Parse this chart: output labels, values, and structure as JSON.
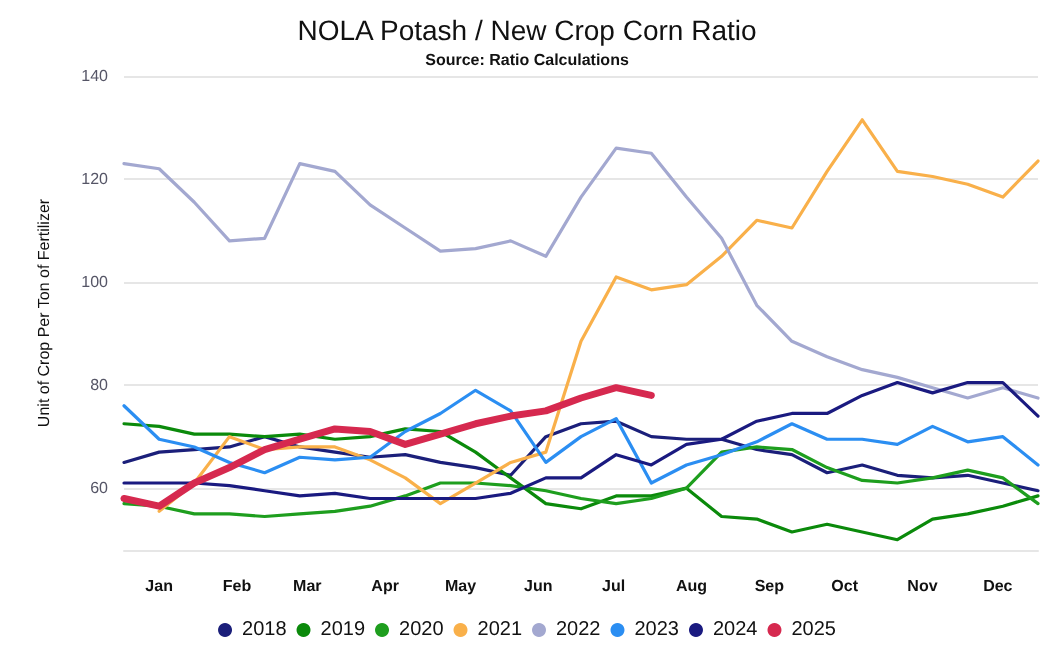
{
  "chart_data": {
    "type": "line",
    "title": "NOLA Potash / New Crop Corn Ratio",
    "subtitle": "Source: Ratio Calculations",
    "ylabel": "Unit of Crop Per Ton of Fertilizer",
    "x": [
      "--01-01",
      "--01-15",
      "--01-29",
      "--02-12",
      "--02-26",
      "--03-12",
      "--03-26",
      "--04-09",
      "--04-23",
      "--05-07",
      "--05-21",
      "--06-04",
      "--06-18",
      "--07-02",
      "--07-16",
      "--07-30",
      "--08-13",
      "--08-27",
      "--09-10",
      "--09-24",
      "--10-08",
      "--10-22",
      "--11-05",
      "--11-19",
      "--12-03",
      "--12-17",
      "--12-31"
    ],
    "xlim": [
      "--01-01",
      "--12-31"
    ],
    "xticks": [
      {
        "value": "--01-15",
        "label": "Jan"
      },
      {
        "value": "--02-15",
        "label": "Feb"
      },
      {
        "value": "--03-15",
        "label": "Mar"
      },
      {
        "value": "--04-15",
        "label": "Apr"
      },
      {
        "value": "--05-15",
        "label": "May"
      },
      {
        "value": "--06-15",
        "label": "Jun"
      },
      {
        "value": "--07-15",
        "label": "Jul"
      },
      {
        "value": "--08-15",
        "label": "Aug"
      },
      {
        "value": "--09-15",
        "label": "Sep"
      },
      {
        "value": "--10-15",
        "label": "Oct"
      },
      {
        "value": "--11-15",
        "label": "Nov"
      },
      {
        "value": "--12-15",
        "label": "Dec"
      }
    ],
    "ylim": [
      48,
      140
    ],
    "yticks": [
      60,
      80,
      100,
      120,
      140
    ],
    "grid": "y",
    "legend": "bottom",
    "marker": "none",
    "line_style": "solid",
    "series": [
      {
        "name": "2018",
        "color": "#1b1f7a",
        "values": [
          65,
          67,
          67.5,
          68,
          70,
          68,
          67,
          66,
          66.5,
          65,
          64,
          62.5,
          70,
          72.5,
          73,
          70,
          69.5,
          69.5,
          67.5,
          66.5,
          63,
          64.5,
          62.5,
          62,
          62.5,
          61,
          59.5
        ]
      },
      {
        "name": "2019",
        "color": "#0b8a0b",
        "values": [
          72.5,
          72,
          70.5,
          70.5,
          70,
          70.5,
          69.5,
          70,
          71.5,
          71,
          67,
          62,
          57,
          56,
          58.5,
          58.5,
          60,
          54.5,
          54,
          51.5,
          53,
          51.5,
          50,
          54,
          55,
          56.5,
          58.5
        ]
      },
      {
        "name": "2020",
        "color": "#1e9e1e",
        "values": [
          57,
          56.5,
          55,
          55,
          54.5,
          55,
          55.5,
          56.5,
          58.5,
          61,
          61,
          60.5,
          59.5,
          58,
          57,
          58,
          60,
          67,
          68,
          67.5,
          64,
          61.5,
          61,
          62,
          63.5,
          62,
          57
        ]
      },
      {
        "name": "2021",
        "color": "#f9b04a",
        "values": [
          null,
          55.5,
          61,
          70,
          67.5,
          68,
          68,
          65.5,
          62,
          57,
          61,
          65,
          67,
          88.5,
          101,
          98.5,
          99.5,
          105,
          112,
          110.5,
          121.5,
          131.5,
          121.5,
          120.5,
          119,
          116.5,
          123.5
        ]
      },
      {
        "name": "2022",
        "color": "#a3a8d0",
        "values": [
          123,
          122,
          115.5,
          108,
          108.5,
          123,
          121.5,
          115,
          110.5,
          106,
          106.5,
          108,
          105,
          116.5,
          126,
          125,
          116.5,
          108.5,
          95.5,
          88.5,
          85.5,
          83,
          81.5,
          79.5,
          77.5,
          79.5,
          77.5
        ]
      },
      {
        "name": "2023",
        "color": "#2b8ef2",
        "values": [
          76,
          69.5,
          68,
          65,
          63,
          66,
          65.5,
          66,
          71,
          74.5,
          79,
          75,
          65,
          70,
          73.5,
          61,
          64.5,
          66.5,
          69,
          72.5,
          69.5,
          69.5,
          68.5,
          72,
          69,
          70,
          64.5
        ]
      },
      {
        "name": "2024",
        "color": "#1a1a80",
        "values": [
          61,
          61,
          61,
          60.5,
          59.5,
          58.5,
          59,
          58,
          58,
          58,
          58,
          59,
          62,
          62,
          66.5,
          64.5,
          68.5,
          69.5,
          73,
          74.5,
          74.5,
          78,
          80.5,
          78.5,
          80.5,
          80.5,
          74
        ]
      },
      {
        "name": "2025",
        "color": "#d6294f",
        "values": [
          58,
          56.5,
          61,
          64,
          67.5,
          69.5,
          71.5,
          71,
          68.5,
          70.5,
          72.5,
          74,
          75,
          77.5,
          79.5,
          78,
          null,
          null,
          null,
          null,
          null,
          null,
          null,
          null,
          null,
          null,
          null
        ]
      }
    ]
  }
}
